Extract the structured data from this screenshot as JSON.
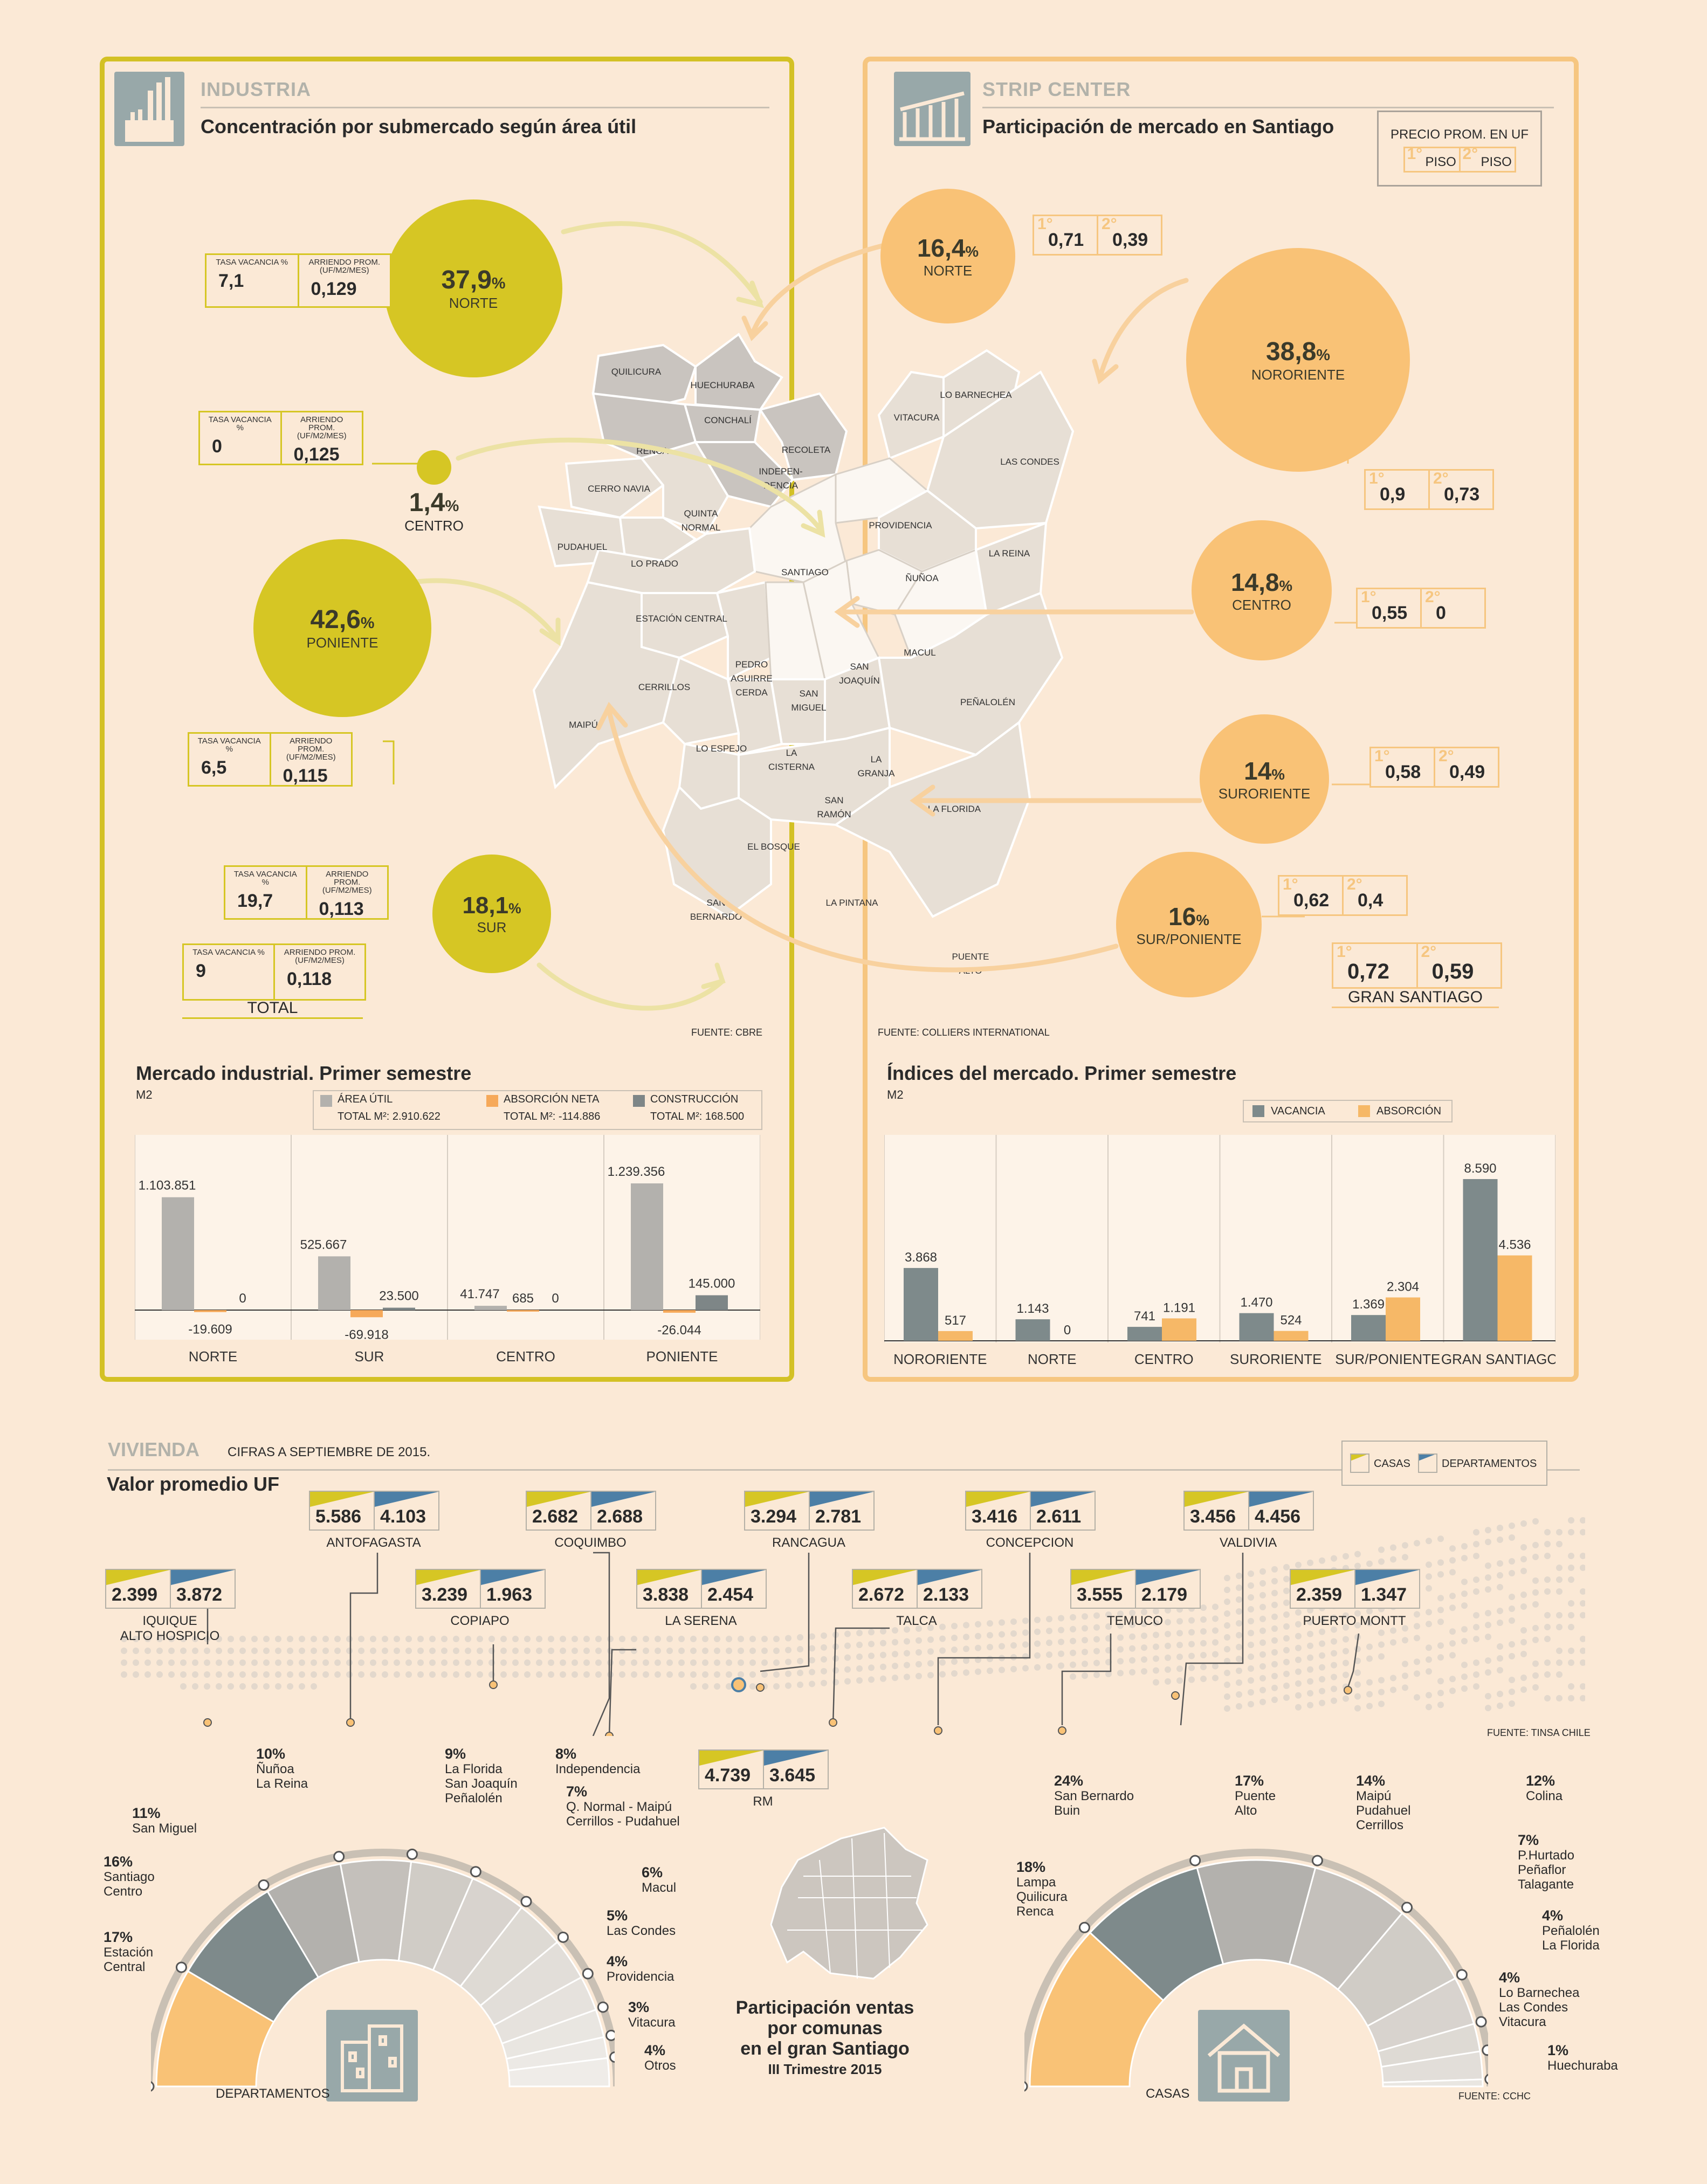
{
  "industria": {
    "kicker": "INDUSTRIA",
    "subtitle": "Concentración por submercado según área útil",
    "bubbles": [
      {
        "pct": "37,9",
        "unit": "%",
        "name": "NORTE",
        "vac": "7,1",
        "arr": "0,129"
      },
      {
        "pct": "1,4",
        "unit": "%",
        "name": "CENTRO",
        "vac": "0",
        "arr": "0,125"
      },
      {
        "pct": "42,6",
        "unit": "%",
        "name": "PONIENTE",
        "vac": "6,5",
        "arr": "0,115"
      },
      {
        "pct": "18,1",
        "unit": "%",
        "name": "SUR",
        "vac": "19,7",
        "arr": "0,113"
      }
    ],
    "stat_labels": {
      "vac": "TASA VACANCIA %",
      "arr": "ARRIENDO PROM. (UF/M2/MES)"
    },
    "total": {
      "label": "TOTAL",
      "vac": "9",
      "arr": "0,118"
    },
    "source": "FUENTE: CBRE"
  },
  "strip": {
    "kicker": "STRIP CENTER",
    "subtitle": "Participación de mercado en Santiago",
    "legend": {
      "title": "PRECIO PROM. EN UF",
      "first": "1°",
      "second": "2°",
      "piso": "PISO"
    },
    "bubbles": [
      {
        "pct": "16,4",
        "unit": "%",
        "name": "NORTE",
        "p1": "0,71",
        "p2": "0,39"
      },
      {
        "pct": "38,8",
        "unit": "%",
        "name": "NORORIENTE",
        "p1": "0,9",
        "p2": "0,73"
      },
      {
        "pct": "14,8",
        "unit": "%",
        "name": "CENTRO",
        "p1": "0,55",
        "p2": "0"
      },
      {
        "pct": "14",
        "unit": "%",
        "name": "SURORIENTE",
        "p1": "0,58",
        "p2": "0,49"
      },
      {
        "pct": "16",
        "unit": "%",
        "name": "SUR/PONIENTE",
        "p1": "0,62",
        "p2": "0,4"
      }
    ],
    "gran": {
      "label": "GRAN SANTIAGO",
      "p1": "0,72",
      "p2": "0,59"
    },
    "source": "FUENTE: COLLIERS INTERNATIONAL"
  },
  "map_labels": [
    "QUILICURA",
    "HUECHURABA",
    "CONCHALÍ",
    "RENCA",
    "RECOLETA",
    "INDEPEN-",
    "DENCIA",
    "LO BARNECHEA",
    "VITACURA",
    "LAS CONDES",
    "CERRO NAVIA",
    "QUINTA",
    "NORMAL",
    "PUDAHUEL",
    "LO PRADO",
    "PROVIDENCIA",
    "SANTIAGO",
    "LA REINA",
    "ÑUÑOA",
    "ESTACIÓN CENTRAL",
    "MACUL",
    "CERRILLOS",
    "PEDRO",
    "AGUIRRE",
    "CERDA",
    "SAN",
    "MIGUEL",
    "SAN",
    "JOAQUÍN",
    "PEÑALOLÉN",
    "MAIPÚ",
    "LO ESPEJO",
    "LA",
    "CISTERNA",
    "LA",
    "GRANJA",
    "SAN",
    "RAMÓN",
    "LA FLORIDA",
    "EL BOSQUE",
    "LA PINTANA",
    "SAN",
    "BERNARDO",
    "PUENTE",
    "ALTO"
  ],
  "chart_industrial": {
    "type": "bar",
    "title": "Mercado industrial. Primer semestre",
    "unit": "M2",
    "categories": [
      "NORTE",
      "SUR",
      "CENTRO",
      "PONIENTE"
    ],
    "series": [
      {
        "name": "ÁREA ÚTIL",
        "total": "TOTAL M²: 2.910.622",
        "color": "#b3b1ad",
        "values": [
          1103851,
          525667,
          41747,
          1239356
        ],
        "labels": [
          "1.103.851",
          "525.667",
          "41.747",
          "1.239.356"
        ]
      },
      {
        "name": "ABSORCIÓN NETA",
        "total": "TOTAL M²: -114.886",
        "color": "#f6a95a",
        "values": [
          -19609,
          -69918,
          685,
          -26044
        ],
        "labels": [
          "-19.609",
          "-69.918",
          "685",
          "-26.044"
        ]
      },
      {
        "name": "CONSTRUCCIÓN",
        "total": "TOTAL M²: 168.500",
        "color": "#7e8687",
        "values": [
          0,
          23500,
          0,
          145000
        ],
        "labels": [
          "0",
          "23.500",
          "0",
          "145.000"
        ]
      }
    ]
  },
  "chart_indices": {
    "type": "bar",
    "title": "Índices del mercado. Primer semestre",
    "unit": "M2",
    "categories": [
      "NORORIENTE",
      "NORTE",
      "CENTRO",
      "SURORIENTE",
      "SUR/PONIENTE",
      "GRAN SANTIAGO"
    ],
    "series": [
      {
        "name": "VACANCIA",
        "color": "#7e8a8b",
        "values": [
          3868,
          1143,
          741,
          1470,
          1369,
          8590
        ],
        "labels": [
          "3.868",
          "1.143",
          "741",
          "1.470",
          "1.369",
          "8.590"
        ]
      },
      {
        "name": "ABSORCIÓN",
        "color": "#f6b867",
        "values": [
          517,
          0,
          1191,
          524,
          2304,
          4536
        ],
        "labels": [
          "517",
          "0",
          "1.191",
          "524",
          "2.304",
          "4.536"
        ]
      }
    ]
  },
  "vivienda": {
    "kicker": "VIVIENDA",
    "note": "CIFRAS A SEPTIEMBRE DE 2015.",
    "subtitle": "Valor promedio UF",
    "legend": {
      "casas": "CASAS",
      "deptos": "DEPARTAMENTOS"
    },
    "cities": [
      {
        "name": "IQUIQUE\nALTO HOSPICIO",
        "casas": "2.399",
        "deptos": "3.872"
      },
      {
        "name": "ANTOFAGASTA",
        "casas": "5.586",
        "deptos": "4.103"
      },
      {
        "name": "COPIAPO",
        "casas": "3.239",
        "deptos": "1.963"
      },
      {
        "name": "COQUIMBO",
        "casas": "2.682",
        "deptos": "2.688"
      },
      {
        "name": "LA SERENA",
        "casas": "3.838",
        "deptos": "2.454"
      },
      {
        "name": "RANCAGUA",
        "casas": "3.294",
        "deptos": "2.781"
      },
      {
        "name": "TALCA",
        "casas": "2.672",
        "deptos": "2.133"
      },
      {
        "name": "CONCEPCION",
        "casas": "3.416",
        "deptos": "2.611"
      },
      {
        "name": "TEMUCO",
        "casas": "3.555",
        "deptos": "2.179"
      },
      {
        "name": "VALDIVIA",
        "casas": "3.456",
        "deptos": "4.456"
      },
      {
        "name": "PUERTO MONTT",
        "casas": "2.359",
        "deptos": "1.347"
      },
      {
        "name": "RM",
        "casas": "4.739",
        "deptos": "3.645"
      }
    ],
    "source": "FUENTE: TINSA CHILE"
  },
  "ventas": {
    "title1": "Participación ventas",
    "title2": "por comunas",
    "title3": "en el gran Santiago",
    "title4": "III Trimestre 2015",
    "deptos_label": "DEPARTAMENTOS",
    "casas_label": "CASAS",
    "source": "FUENTE: CCHC",
    "deptos": [
      {
        "pct": "17%",
        "name": "Estación\nCentral"
      },
      {
        "pct": "16%",
        "name": "Santiago\nCentro"
      },
      {
        "pct": "11%",
        "name": "San Miguel"
      },
      {
        "pct": "10%",
        "name": "Ñuñoa\nLa Reina"
      },
      {
        "pct": "9%",
        "name": "La Florida\nSan Joaquín\nPeñalolén"
      },
      {
        "pct": "8%",
        "name": "Independencia"
      },
      {
        "pct": "7%",
        "name": "Q. Normal - Maipú\nCerrillos - Pudahuel"
      },
      {
        "pct": "6%",
        "name": "Macul"
      },
      {
        "pct": "5%",
        "name": "Las Condes"
      },
      {
        "pct": "4%",
        "name": "Providencia"
      },
      {
        "pct": "3%",
        "name": "Vitacura"
      },
      {
        "pct": "4%",
        "name": "Otros"
      }
    ],
    "casas": [
      {
        "pct": "24%",
        "name": "San Bernardo\nBuin"
      },
      {
        "pct": "18%",
        "name": "Lampa\nQuilicura\nRenca"
      },
      {
        "pct": "17%",
        "name": "Puente\nAlto"
      },
      {
        "pct": "14%",
        "name": "Maipú\nPudahuel\nCerrillos"
      },
      {
        "pct": "12%",
        "name": "Colina"
      },
      {
        "pct": "7%",
        "name": "P.Hurtado\nPeñaflor\nTalagante"
      },
      {
        "pct": "4%",
        "name": "Peñalolén\nLa Florida"
      },
      {
        "pct": "4%",
        "name": "Lo Barnechea\nLas Condes\nVitacura"
      },
      {
        "pct": "1%",
        "name": "Huechuraba"
      }
    ]
  }
}
